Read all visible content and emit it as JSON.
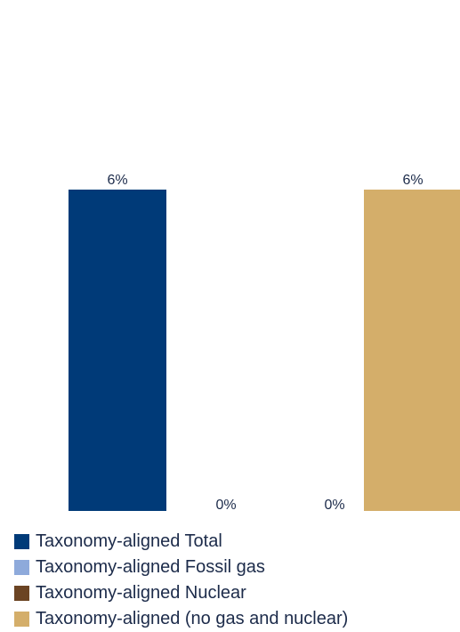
{
  "chart_data": {
    "type": "bar",
    "categories": [
      "Taxonomy-aligned Total",
      "Taxonomy-aligned Fossil gas",
      "Taxonomy-aligned Nuclear",
      "Taxonomy-aligned (no gas and nuclear)"
    ],
    "values": [
      6,
      0,
      0,
      6
    ],
    "data_labels": [
      "6%",
      "0%",
      "0%",
      "6%"
    ],
    "colors": [
      "#003a78",
      "#8eaadb",
      "#6b4423",
      "#d4ae6a"
    ],
    "ylim": [
      0,
      6
    ],
    "grid": false,
    "legend": {
      "position": "bottom-left",
      "items": [
        {
          "label": "Taxonomy-aligned Total",
          "color": "#003a78"
        },
        {
          "label": "Taxonomy-aligned Fossil gas",
          "color": "#8eaadb"
        },
        {
          "label": "Taxonomy-aligned Nuclear",
          "color": "#6b4423"
        },
        {
          "label": "Taxonomy-aligned (no gas and nuclear)",
          "color": "#d4ae6a"
        }
      ]
    }
  }
}
